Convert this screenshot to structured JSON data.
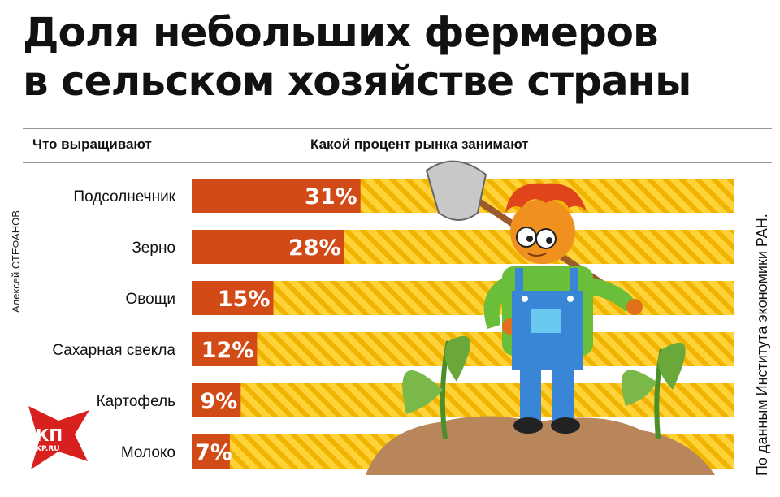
{
  "title_line1": "Доля небольших фермеров",
  "title_line2": "в сельском хозяйстве страны",
  "header": {
    "left": "Что выращивают",
    "right": "Какой процент рынка занимают"
  },
  "author": "Алексей СТЕФАНОВ",
  "source": "По данным Института экономики РАН.",
  "logo": {
    "text": "КП",
    "sub": "KP.RU"
  },
  "colors": {
    "bar_fill": "#d24a16",
    "track_base": "#ffd23a",
    "track_stripe": "#f0b400"
  },
  "chart_data": {
    "type": "bar",
    "orientation": "horizontal",
    "categories": [
      "Подсолнечник",
      "Зерно",
      "Овощи",
      "Сахарная свекла",
      "Картофель",
      "Молоко"
    ],
    "values": [
      31,
      28,
      15,
      12,
      9,
      7
    ],
    "value_labels": [
      "31%",
      "28%",
      "15%",
      "12%",
      "9%",
      "7%"
    ],
    "unit": "%"
  }
}
